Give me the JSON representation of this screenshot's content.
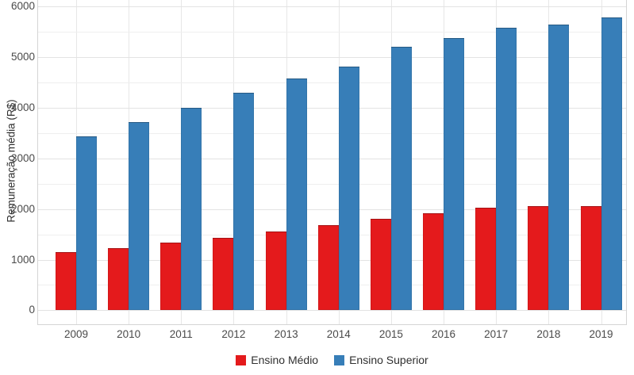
{
  "chart_data": {
    "type": "bar",
    "title": "",
    "xlabel": "",
    "ylabel": "Remuneração média (R$)",
    "ylim": [
      0,
      6000
    ],
    "y_major_step": 1000,
    "y_minor_step": 500,
    "y_tick_labels": [
      "0",
      "1000",
      "2000",
      "3000",
      "4000",
      "5000",
      "6000"
    ],
    "grid": true,
    "legend_position": "bottom",
    "categories": [
      "2009",
      "2010",
      "2011",
      "2012",
      "2013",
      "2014",
      "2015",
      "2016",
      "2017",
      "2018",
      "2019"
    ],
    "series": [
      {
        "name": "Ensino Médio",
        "color": "#e41a1c",
        "values": [
          1150,
          1230,
          1340,
          1430,
          1560,
          1680,
          1810,
          1920,
          2020,
          2050,
          2060
        ]
      },
      {
        "name": "Ensino Superior",
        "color": "#377eb8",
        "values": [
          3430,
          3720,
          4000,
          4290,
          4570,
          4810,
          5200,
          5380,
          5580,
          5640,
          5780
        ]
      }
    ]
  },
  "colors": {
    "background": "#ffffff",
    "panel_border": "#d4d4d4",
    "grid_major": "#e3e3e3",
    "grid_minor": "#efefef",
    "grid_vertical": "#e7e7e7",
    "tick_text": "#4a4a4a",
    "title_text": "#303030"
  }
}
